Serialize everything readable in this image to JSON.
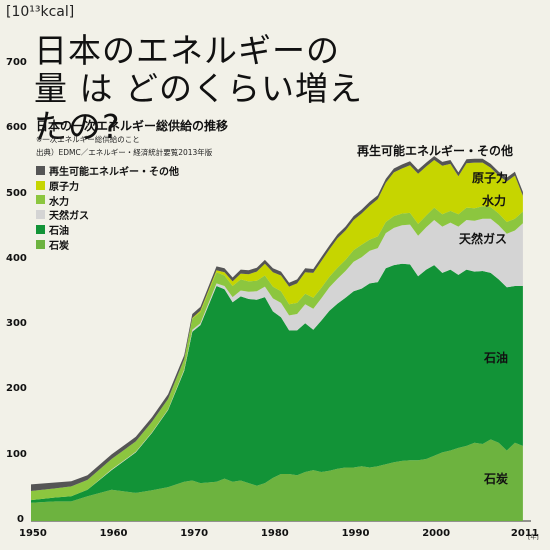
{
  "chart_data": {
    "type": "area",
    "stacked": true,
    "title": "日本のエネルギーの量 は どのくらい増えたの?",
    "subtitle": "日本の一次エネルギー総供給の推移",
    "note": "※一次エネルギー総供給のこと",
    "source": "出典）EDMC／エネルギー・経済統計要覧2013年版",
    "ylabel": "[10¹³kcal]",
    "xunit": "[年]",
    "ylim": [
      0,
      700
    ],
    "xlim": [
      1950,
      2012
    ],
    "yticks": [
      0,
      100,
      200,
      300,
      400,
      500,
      600,
      700
    ],
    "xticks": [
      1950,
      1960,
      1970,
      1980,
      1990,
      2000,
      2011
    ],
    "x": [
      1950,
      1953,
      1955,
      1957,
      1960,
      1963,
      1965,
      1967,
      1969,
      1970,
      1971,
      1973,
      1974,
      1975,
      1976,
      1977,
      1978,
      1979,
      1980,
      1981,
      1982,
      1983,
      1984,
      1985,
      1986,
      1987,
      1988,
      1989,
      1990,
      1991,
      1992,
      1993,
      1994,
      1995,
      1996,
      1997,
      1998,
      1999,
      2000,
      2001,
      2002,
      2003,
      2004,
      2005,
      2006,
      2007,
      2008,
      2009,
      2010,
      2011
    ],
    "series": [
      {
        "name": "石炭",
        "color": "#6db33f",
        "values": [
          28,
          30,
          30,
          38,
          48,
          43,
          47,
          52,
          60,
          62,
          58,
          60,
          65,
          60,
          62,
          58,
          54,
          58,
          66,
          72,
          72,
          70,
          75,
          78,
          75,
          77,
          80,
          82,
          82,
          84,
          82,
          84,
          87,
          90,
          92,
          93,
          93,
          95,
          100,
          105,
          108,
          112,
          115,
          120,
          118,
          125,
          120,
          108,
          120,
          115
        ]
      },
      {
        "name": "石油",
        "color": "#129337",
        "values": [
          4,
          6,
          8,
          10,
          30,
          62,
          88,
          118,
          170,
          228,
          242,
          300,
          290,
          275,
          282,
          282,
          285,
          285,
          255,
          240,
          220,
          222,
          228,
          215,
          232,
          245,
          253,
          260,
          270,
          272,
          282,
          282,
          300,
          302,
          302,
          300,
          282,
          290,
          292,
          275,
          277,
          265,
          270,
          262,
          265,
          255,
          250,
          250,
          240,
          245
        ]
      },
      {
        "name": "天然ガス",
        "color": "#d4d4d4",
        "values": [
          0,
          0,
          0,
          0,
          1,
          1,
          1,
          1,
          2,
          3,
          3,
          4,
          5,
          8,
          9,
          11,
          13,
          16,
          20,
          22,
          23,
          25,
          29,
          32,
          34,
          36,
          38,
          41,
          45,
          48,
          50,
          52,
          54,
          57,
          59,
          61,
          62,
          65,
          69,
          71,
          72,
          74,
          76,
          78,
          80,
          83,
          83,
          82,
          85,
          96
        ]
      },
      {
        "name": "水力",
        "color": "#8cc63f",
        "values": [
          14,
          14,
          15,
          15,
          16,
          16,
          16,
          16,
          16,
          17,
          17,
          17,
          16,
          17,
          17,
          16,
          16,
          17,
          18,
          18,
          17,
          17,
          16,
          17,
          16,
          16,
          17,
          17,
          18,
          19,
          17,
          18,
          17,
          18,
          18,
          18,
          18,
          18,
          19,
          19,
          18,
          19,
          19,
          19,
          19,
          18,
          18,
          18,
          18,
          18
        ]
      },
      {
        "name": "原子力",
        "color": "#c6d500",
        "values": [
          0,
          0,
          0,
          0,
          0,
          0,
          0,
          0,
          0,
          1,
          2,
          3,
          5,
          7,
          9,
          11,
          14,
          18,
          22,
          24,
          27,
          30,
          33,
          38,
          41,
          42,
          45,
          45,
          46,
          48,
          52,
          57,
          60,
          67,
          69,
          73,
          77,
          75,
          73,
          74,
          72,
          58,
          68,
          70,
          67,
          60,
          58,
          62,
          66,
          24
        ]
      },
      {
        "name": "再生可能エネルギー・その他",
        "color": "#555555",
        "values": [
          10,
          9,
          8,
          7,
          7,
          7,
          7,
          7,
          6,
          6,
          6,
          6,
          6,
          6,
          6,
          6,
          6,
          6,
          6,
          6,
          6,
          6,
          6,
          6,
          6,
          6,
          6,
          6,
          6,
          6,
          6,
          6,
          6,
          6,
          6,
          6,
          6,
          6,
          6,
          6,
          6,
          6,
          6,
          6,
          6,
          6,
          6,
          6,
          6,
          6
        ]
      }
    ],
    "legend_position": "top-left",
    "legend_order": [
      "再生可能エネルギー・その他",
      "原子力",
      "水力",
      "天然ガス",
      "石油",
      "石炭"
    ],
    "grid": false
  },
  "labels": {
    "renew": "再生可能エネルギー・その他",
    "nuclear": "原子力",
    "hydro": "水力",
    "gas": "天然ガス",
    "oil": "石油",
    "coal": "石炭"
  }
}
